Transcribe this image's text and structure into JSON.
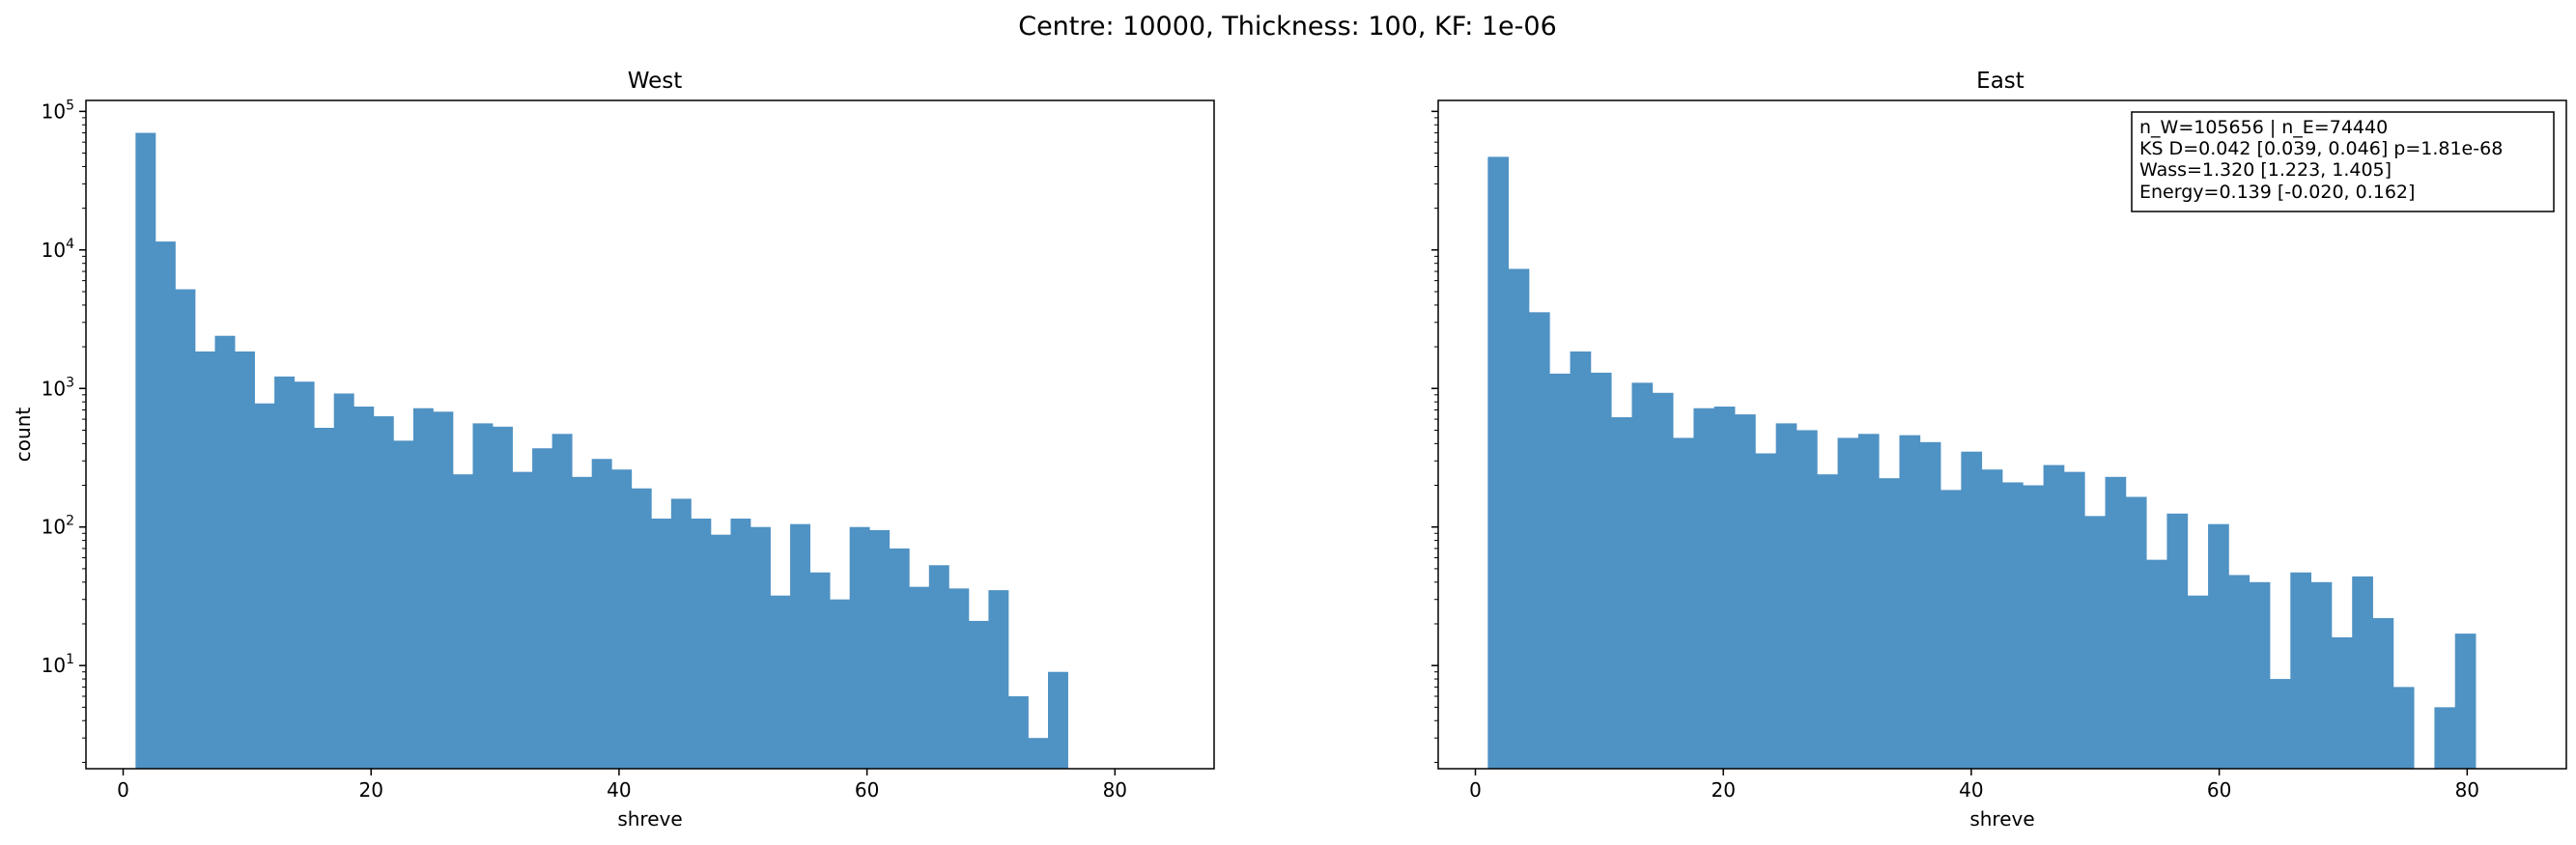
{
  "suptitle": "Centre: 10000, Thickness: 100, KF: 1e-06",
  "colors": {
    "bar": "#4f92c4",
    "axis": "#000000",
    "background": "#ffffff"
  },
  "chart_data": [
    {
      "type": "bar",
      "title": "West",
      "xlabel": "shreve",
      "ylabel": "count",
      "yscale": "log",
      "xlim": [
        -3,
        88
      ],
      "ylim": [
        1.8,
        120000
      ],
      "xticks": [
        0,
        20,
        40,
        60,
        80
      ],
      "yticks": [
        10,
        100,
        1000,
        10000,
        100000
      ],
      "ytick_labels": [
        {
          "base": "10",
          "exp": "1"
        },
        {
          "base": "10",
          "exp": "2"
        },
        {
          "base": "10",
          "exp": "3"
        },
        {
          "base": "10",
          "exp": "4"
        },
        {
          "base": "10",
          "exp": "5"
        }
      ],
      "grid": false,
      "bin_start": 1.0,
      "bin_width": 1.6,
      "values": [
        70000,
        11500,
        5200,
        1850,
        2400,
        1850,
        780,
        1220,
        1120,
        520,
        920,
        740,
        630,
        420,
        720,
        680,
        240,
        560,
        530,
        250,
        370,
        470,
        230,
        310,
        260,
        190,
        115,
        160,
        115,
        88,
        115,
        100,
        32,
        105,
        47,
        30,
        100,
        95,
        70,
        37,
        53,
        36,
        21,
        35,
        6,
        3,
        9
      ]
    },
    {
      "type": "bar",
      "title": "East",
      "xlabel": "shreve",
      "ylabel": "",
      "yscale": "log",
      "xlim": [
        -3,
        88
      ],
      "ylim": [
        1.8,
        120000
      ],
      "xticks": [
        0,
        20,
        40,
        60,
        80
      ],
      "grid": false,
      "bin_start": 1.0,
      "bin_width": 1.66,
      "values": [
        47000,
        7300,
        3550,
        1280,
        1850,
        1300,
        620,
        1100,
        930,
        440,
        720,
        740,
        650,
        340,
        560,
        500,
        240,
        440,
        470,
        225,
        460,
        410,
        185,
        350,
        260,
        210,
        200,
        280,
        250,
        120,
        230,
        165,
        58,
        125,
        32,
        105,
        45,
        40,
        8,
        47,
        40,
        16,
        44,
        22,
        7,
        null,
        5,
        17
      ],
      "legend_box": {
        "position": "top-right",
        "lines": [
          "n_W=105656 | n_E=74440",
          "KS D=0.042 [0.039, 0.046]  p=1.81e-68",
          "Wass=1.320 [1.223, 1.405]",
          "Energy=0.139 [-0.020, 0.162]"
        ]
      }
    }
  ]
}
